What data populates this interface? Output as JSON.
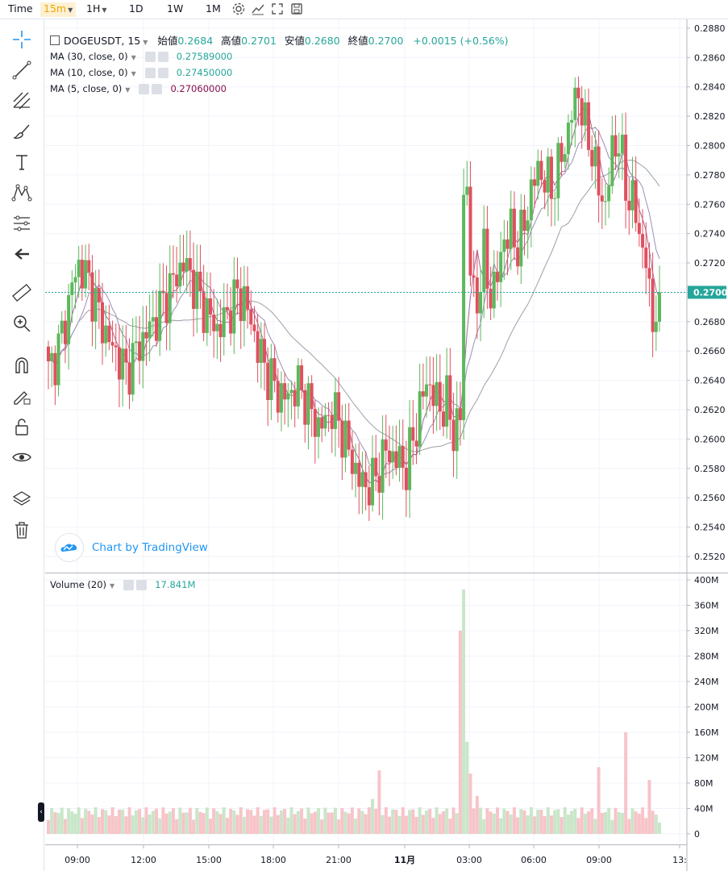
{
  "topbar": {
    "time_label": "Time",
    "intervals": [
      {
        "label": "15m",
        "active": true,
        "dropdown": true
      },
      {
        "label": "1H",
        "active": false,
        "dropdown": true
      },
      {
        "label": "1D",
        "active": false,
        "dropdown": false
      },
      {
        "label": "1W",
        "active": false,
        "dropdown": false
      },
      {
        "label": "1M",
        "active": false,
        "dropdown": false
      }
    ],
    "icons": [
      "settings-icon",
      "indicators-icon",
      "fullscreen-icon",
      "save-icon"
    ]
  },
  "tools": [
    "crosshair-icon",
    "trendline-icon",
    "pitchfork-icon",
    "brush-icon",
    "text-icon",
    "pattern-icon",
    "prediction-icon",
    "back-arrow-icon",
    "ruler-icon",
    "zoom-icon",
    "magnet-icon",
    "lock-drawing-icon",
    "unlock-icon",
    "eye-icon",
    "layers-icon",
    "trash-icon"
  ],
  "legend": {
    "symbol": "DOGEUSDT, 15",
    "open_label": "始値",
    "open": "0.2684",
    "high_label": "高値",
    "high": "0.2701",
    "low_label": "安値",
    "low": "0.2680",
    "close_label": "終値",
    "close": "0.2700",
    "change": "+0.0015 (+0.56%)"
  },
  "ma": [
    {
      "label": "MA (30, close, 0)",
      "value": "0.27589000",
      "color": "#26a69a"
    },
    {
      "label": "MA (10, close, 0)",
      "value": "0.27450000",
      "color": "#26a69a"
    },
    {
      "label": "MA (5, close, 0)",
      "value": "0.27060000",
      "color": "#880e4f"
    }
  ],
  "volume_legend": {
    "label": "Volume (20)",
    "value": "17.841M"
  },
  "branding": {
    "label": "Chart by TradingView"
  },
  "last_price": "0.2700",
  "colors": {
    "up": "#26a69a",
    "up_candle": "#5cb85c",
    "down": "#e0505f",
    "vol_up": "#c9e6c9",
    "vol_down": "#f7c4c9",
    "accent": "#f0a400"
  },
  "chart_data": [
    {
      "type": "candlestick",
      "title": "DOGEUSDT, 15",
      "x": [
        "09:00",
        "12:00",
        "15:00",
        "18:00",
        "21:00",
        "11月",
        "03:00",
        "06:00",
        "09:00",
        "13:"
      ],
      "y_ticks": [
        "0.2880",
        "0.2860",
        "0.2840",
        "0.2820",
        "0.2800",
        "0.2780",
        "0.2760",
        "0.2740",
        "0.2720",
        "0.2700",
        "0.2680",
        "0.2660",
        "0.2640",
        "0.2620",
        "0.2600",
        "0.2580",
        "0.2560",
        "0.2540",
        "0.2520"
      ],
      "ylim": [
        0.2509,
        0.2886
      ],
      "grid": true,
      "series": [
        {
          "name": "MA (30, close, 0)"
        },
        {
          "name": "MA (10, close, 0)"
        },
        {
          "name": "MA (5, close, 0)"
        }
      ],
      "anchors": [
        [
          0,
          0.2645
        ],
        [
          3,
          0.2662
        ],
        [
          5,
          0.268
        ],
        [
          7,
          0.2705
        ],
        [
          9,
          0.2718
        ],
        [
          11,
          0.2712
        ],
        [
          13,
          0.27
        ],
        [
          15,
          0.2685
        ],
        [
          17,
          0.2672
        ],
        [
          19,
          0.2662
        ],
        [
          21,
          0.2655
        ],
        [
          23,
          0.2645
        ],
        [
          26,
          0.266
        ],
        [
          29,
          0.2672
        ],
        [
          32,
          0.2683
        ],
        [
          35,
          0.2698
        ],
        [
          38,
          0.2712
        ],
        [
          40,
          0.272
        ],
        [
          42,
          0.2712
        ],
        [
          44,
          0.27
        ],
        [
          46,
          0.269
        ],
        [
          48,
          0.2682
        ],
        [
          50,
          0.2675
        ],
        [
          52,
          0.268
        ],
        [
          54,
          0.269
        ],
        [
          56,
          0.2698
        ],
        [
          58,
          0.2695
        ],
        [
          60,
          0.268
        ],
        [
          62,
          0.2662
        ],
        [
          64,
          0.265
        ],
        [
          66,
          0.264
        ],
        [
          68,
          0.2632
        ],
        [
          70,
          0.2628
        ],
        [
          72,
          0.2632
        ],
        [
          74,
          0.2636
        ],
        [
          76,
          0.2628
        ],
        [
          78,
          0.2618
        ],
        [
          80,
          0.2608
        ],
        [
          82,
          0.2612
        ],
        [
          84,
          0.262
        ],
        [
          86,
          0.2612
        ],
        [
          88,
          0.2598
        ],
        [
          90,
          0.2585
        ],
        [
          92,
          0.2572
        ],
        [
          94,
          0.2568
        ],
        [
          96,
          0.257
        ],
        [
          98,
          0.258
        ],
        [
          100,
          0.2592
        ],
        [
          102,
          0.2588
        ],
        [
          104,
          0.2585
        ],
        [
          106,
          0.258
        ],
        [
          108,
          0.26
        ],
        [
          110,
          0.262
        ],
        [
          112,
          0.264
        ],
        [
          114,
          0.263
        ],
        [
          116,
          0.2622
        ],
        [
          118,
          0.2625
        ],
        [
          120,
          0.2605
        ],
        [
          122,
          0.2615
        ],
        [
          123,
          0.2766
        ],
        [
          124,
          0.2772
        ],
        [
          125,
          0.272
        ],
        [
          126,
          0.2695
        ],
        [
          127,
          0.269
        ],
        [
          128,
          0.2715
        ],
        [
          129,
          0.2725
        ],
        [
          130,
          0.2705
        ],
        [
          131,
          0.27
        ],
        [
          133,
          0.271
        ],
        [
          135,
          0.2738
        ],
        [
          137,
          0.274
        ],
        [
          139,
          0.2732
        ],
        [
          141,
          0.2745
        ],
        [
          143,
          0.277
        ],
        [
          145,
          0.2783
        ],
        [
          147,
          0.2778
        ],
        [
          149,
          0.277
        ],
        [
          151,
          0.2785
        ],
        [
          153,
          0.28
        ],
        [
          155,
          0.2822
        ],
        [
          157,
          0.2838
        ],
        [
          159,
          0.281
        ],
        [
          161,
          0.2798
        ],
        [
          163,
          0.277
        ],
        [
          165,
          0.276
        ],
        [
          167,
          0.2795
        ],
        [
          169,
          0.2805
        ],
        [
          171,
          0.277
        ],
        [
          173,
          0.2763
        ],
        [
          175,
          0.274
        ],
        [
          177,
          0.2722
        ],
        [
          178,
          0.2695
        ],
        [
          179,
          0.2682
        ],
        [
          180,
          0.269
        ],
        [
          181,
          0.27
        ]
      ],
      "volume": {
        "ylabel": "Volume (20)",
        "y_ticks": [
          "400M",
          "360M",
          "320M",
          "280M",
          "240M",
          "200M",
          "160M",
          "120M",
          "80M",
          "40M",
          "0"
        ],
        "ylim": [
          0,
          400
        ]
      }
    }
  ]
}
